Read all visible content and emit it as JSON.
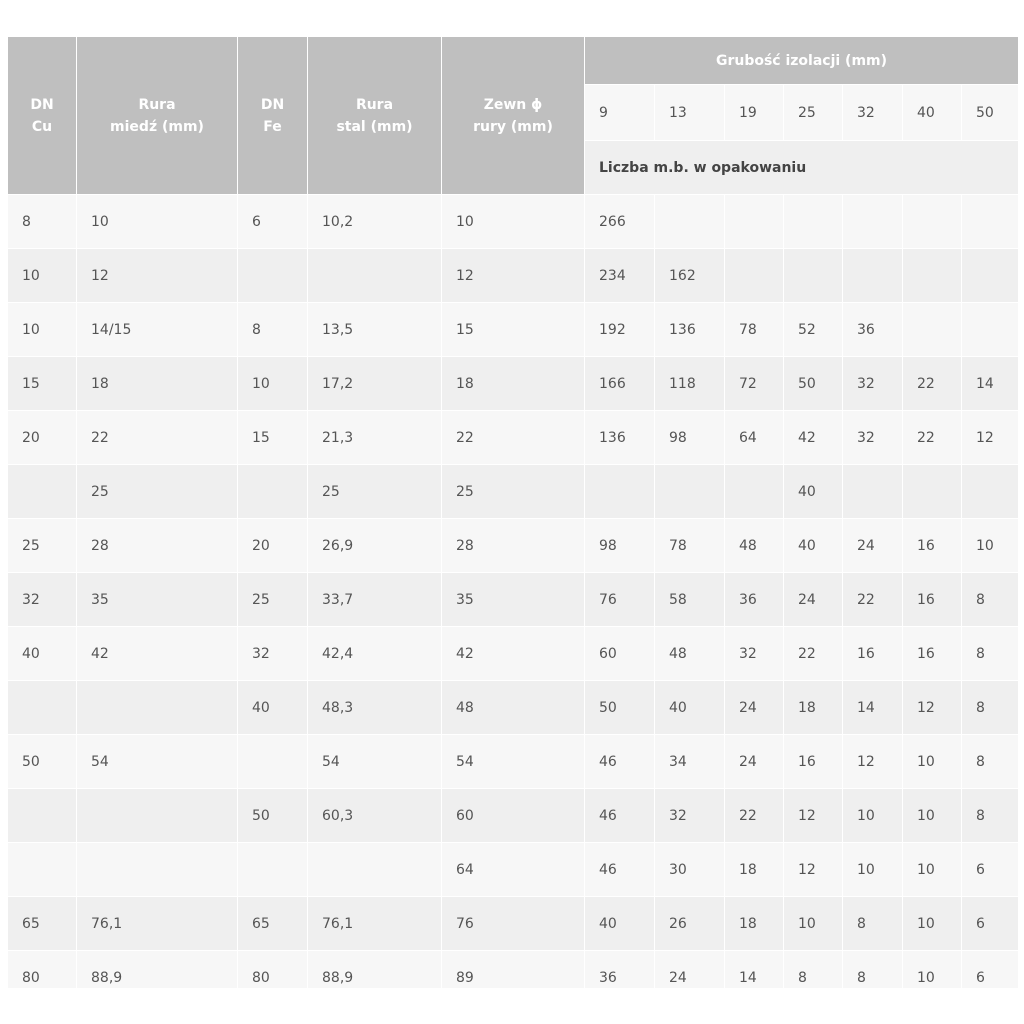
{
  "header": {
    "dn_cu": [
      "DN",
      "Cu"
    ],
    "rura_miedz": [
      "Rura",
      "miedź (mm)"
    ],
    "dn_fe": [
      "DN",
      "Fe"
    ],
    "rura_stal": [
      "Rura",
      "stal (mm)"
    ],
    "zewn": [
      "Zewn ϕ",
      "rury (mm)"
    ],
    "grubosc": "Grubość izolacji (mm)",
    "thicknesses": [
      "9",
      "13",
      "19",
      "25",
      "32",
      "40",
      "50"
    ],
    "liczba": "Liczba m.b. w opakowaniu"
  },
  "rows": [
    [
      "8",
      "10",
      "6",
      "10,2",
      "10",
      "266",
      "",
      "",
      "",
      "",
      "",
      ""
    ],
    [
      "10",
      "12",
      "",
      "",
      "12",
      "234",
      "162",
      "",
      "",
      "",
      "",
      ""
    ],
    [
      "10",
      "14/15",
      "8",
      "13,5",
      "15",
      "192",
      "136",
      "78",
      "52",
      "36",
      "",
      ""
    ],
    [
      "15",
      "18",
      "10",
      "17,2",
      "18",
      "166",
      "118",
      "72",
      "50",
      "32",
      "22",
      "14"
    ],
    [
      "20",
      "22",
      "15",
      "21,3",
      "22",
      "136",
      "98",
      "64",
      "42",
      "32",
      "22",
      "12"
    ],
    [
      "",
      "25",
      "",
      "25",
      "25",
      "",
      "",
      "",
      "40",
      "",
      "",
      ""
    ],
    [
      "25",
      "28",
      "20",
      "26,9",
      "28",
      "98",
      "78",
      "48",
      "40",
      "24",
      "16",
      "10"
    ],
    [
      "32",
      "35",
      "25",
      "33,7",
      "35",
      "76",
      "58",
      "36",
      "24",
      "22",
      "16",
      "8"
    ],
    [
      "40",
      "42",
      "32",
      "42,4",
      "42",
      "60",
      "48",
      "32",
      "22",
      "16",
      "16",
      "8"
    ],
    [
      "",
      "",
      "40",
      "48,3",
      "48",
      "50",
      "40",
      "24",
      "18",
      "14",
      "12",
      "8"
    ],
    [
      "50",
      "54",
      "",
      "54",
      "54",
      "46",
      "34",
      "24",
      "16",
      "12",
      "10",
      "8"
    ],
    [
      "",
      "",
      "50",
      "60,3",
      "60",
      "46",
      "32",
      "22",
      "12",
      "10",
      "10",
      "8"
    ],
    [
      "",
      "",
      "",
      "",
      "64",
      "46",
      "30",
      "18",
      "12",
      "10",
      "10",
      "6"
    ],
    [
      "65",
      "76,1",
      "65",
      "76,1",
      "76",
      "40",
      "26",
      "18",
      "10",
      "8",
      "10",
      "6"
    ],
    [
      "80",
      "88,9",
      "80",
      "88,9",
      "89",
      "36",
      "24",
      "14",
      "8",
      "8",
      "10",
      "6"
    ]
  ],
  "colors": {
    "header_bg": "#bfbfbf",
    "row_light": "#f7f7f7",
    "row_dark": "#efefef",
    "text": "#555555"
  }
}
